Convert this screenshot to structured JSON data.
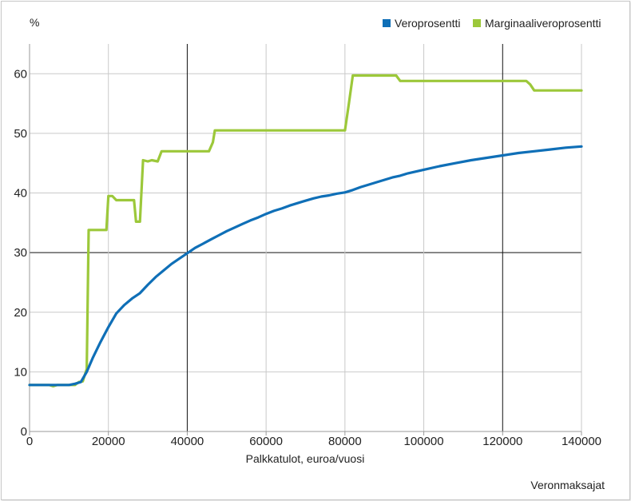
{
  "chart_data": {
    "type": "line",
    "ylabel_unit": "%",
    "xlabel": "Palkkatulot, euroa/vuosi",
    "source": "Veronmaksajat",
    "xlim": [
      0,
      140000
    ],
    "ylim": [
      0,
      65
    ],
    "x_ticks": [
      0,
      20000,
      40000,
      60000,
      80000,
      100000,
      120000,
      140000
    ],
    "x_tick_labels": [
      "0",
      "20000",
      "40000",
      "60000",
      "80000",
      "100000",
      "120000",
      "140000"
    ],
    "y_ticks": [
      0,
      10,
      20,
      30,
      40,
      50,
      60
    ],
    "y_tick_labels": [
      "0",
      "10",
      "20",
      "30",
      "40",
      "50",
      "60"
    ],
    "major_x_gridlines": [
      40000,
      120000
    ],
    "legend_position": "top-right",
    "series": [
      {
        "name": "Veroprosentti",
        "color": "#0f6fb7",
        "points": [
          [
            0,
            7.8
          ],
          [
            10000,
            7.8
          ],
          [
            11500,
            8.0
          ],
          [
            13000,
            8.3
          ],
          [
            14500,
            10.0
          ],
          [
            16000,
            12.3
          ],
          [
            18000,
            15.0
          ],
          [
            20000,
            17.5
          ],
          [
            22000,
            19.8
          ],
          [
            24000,
            21.2
          ],
          [
            26000,
            22.3
          ],
          [
            28000,
            23.2
          ],
          [
            30000,
            24.6
          ],
          [
            32000,
            25.9
          ],
          [
            34000,
            27.0
          ],
          [
            36000,
            28.1
          ],
          [
            38000,
            29.0
          ],
          [
            40000,
            29.9
          ],
          [
            42000,
            30.8
          ],
          [
            44000,
            31.5
          ],
          [
            46000,
            32.2
          ],
          [
            48000,
            32.9
          ],
          [
            50000,
            33.6
          ],
          [
            52000,
            34.2
          ],
          [
            54000,
            34.8
          ],
          [
            56000,
            35.4
          ],
          [
            58000,
            35.9
          ],
          [
            60000,
            36.5
          ],
          [
            62000,
            37.0
          ],
          [
            64000,
            37.4
          ],
          [
            66000,
            37.9
          ],
          [
            68000,
            38.3
          ],
          [
            70000,
            38.7
          ],
          [
            72000,
            39.1
          ],
          [
            74000,
            39.4
          ],
          [
            76000,
            39.6
          ],
          [
            78000,
            39.9
          ],
          [
            80000,
            40.1
          ],
          [
            82000,
            40.5
          ],
          [
            84000,
            41.0
          ],
          [
            86000,
            41.4
          ],
          [
            88000,
            41.8
          ],
          [
            90000,
            42.2
          ],
          [
            92000,
            42.6
          ],
          [
            94000,
            42.9
          ],
          [
            96000,
            43.3
          ],
          [
            98000,
            43.6
          ],
          [
            100000,
            43.9
          ],
          [
            104000,
            44.5
          ],
          [
            108000,
            45.0
          ],
          [
            112000,
            45.5
          ],
          [
            116000,
            45.9
          ],
          [
            120000,
            46.3
          ],
          [
            124000,
            46.7
          ],
          [
            128000,
            47.0
          ],
          [
            132000,
            47.3
          ],
          [
            136000,
            47.6
          ],
          [
            140000,
            47.8
          ]
        ]
      },
      {
        "name": "Marginaaliveroprosentti",
        "color": "#9cc83a",
        "points": [
          [
            0,
            7.8
          ],
          [
            5000,
            7.8
          ],
          [
            6000,
            7.6
          ],
          [
            7000,
            7.8
          ],
          [
            11500,
            7.8
          ],
          [
            12500,
            8.3
          ],
          [
            13500,
            8.4
          ],
          [
            14500,
            10.5
          ],
          [
            15000,
            33.8
          ],
          [
            19500,
            33.8
          ],
          [
            20000,
            39.5
          ],
          [
            21000,
            39.5
          ],
          [
            22000,
            38.8
          ],
          [
            26500,
            38.8
          ],
          [
            27000,
            35.2
          ],
          [
            28000,
            35.2
          ],
          [
            28800,
            45.5
          ],
          [
            30000,
            45.3
          ],
          [
            31000,
            45.5
          ],
          [
            32500,
            45.3
          ],
          [
            33500,
            47.0
          ],
          [
            45500,
            47.0
          ],
          [
            46500,
            48.5
          ],
          [
            47000,
            50.5
          ],
          [
            80000,
            50.5
          ],
          [
            81000,
            55.0
          ],
          [
            82000,
            59.7
          ],
          [
            93000,
            59.7
          ],
          [
            94000,
            58.8
          ],
          [
            126000,
            58.8
          ],
          [
            127000,
            58.2
          ],
          [
            128000,
            57.2
          ],
          [
            140000,
            57.2
          ]
        ]
      }
    ]
  }
}
